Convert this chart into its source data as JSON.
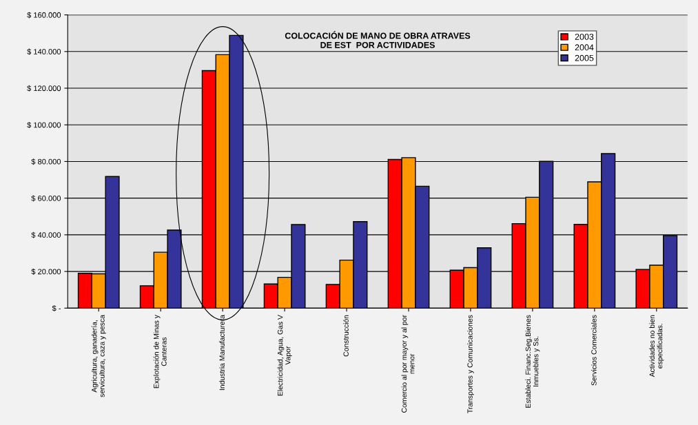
{
  "chart_data": {
    "type": "bar",
    "title": "COLOCACIÓN DE MANO DE OBRA ATRAVES\nDE EST  POR ACTIVIDADES",
    "categories": [
      "Agricultura, ganadería,\nservicultura, caza y pesca",
      "Explotación de Minas y\nCanteras",
      "Industria Manufacturera",
      "Electricidad, Agua, Gas V\nVapor",
      "Construcción",
      "Comercio al por mayor y al por\nmenor",
      "Transportes y Comunicaciones",
      "Estableci. Financ.Seg.Bienes\nInmuebles y Ss.",
      "Servicios Comerciales",
      "Actividades no bien\nespecificadas."
    ],
    "series": [
      {
        "name": "2003",
        "color": "#ff0000",
        "values": [
          19000,
          12200,
          129600,
          13200,
          12900,
          81100,
          20700,
          46100,
          45700,
          21100
        ]
      },
      {
        "name": "2004",
        "color": "#ff9900",
        "values": [
          18700,
          30500,
          138300,
          16800,
          26200,
          82100,
          22100,
          60500,
          68900,
          23400
        ]
      },
      {
        "name": "2005",
        "color": "#333399",
        "values": [
          71800,
          42600,
          148800,
          45600,
          47200,
          66500,
          32900,
          80100,
          84300,
          39600
        ]
      }
    ],
    "ylim": [
      0,
      160000
    ],
    "yticks": [
      {
        "value": 0,
        "label": "$ -"
      },
      {
        "value": 20000,
        "label": "$ 20.000"
      },
      {
        "value": 40000,
        "label": "$ 40.000"
      },
      {
        "value": 60000,
        "label": "$ 60.000"
      },
      {
        "value": 80000,
        "label": "$ 80.000"
      },
      {
        "value": 100000,
        "label": "$ 100.000"
      },
      {
        "value": 120000,
        "label": "$ 120.000"
      },
      {
        "value": 140000,
        "label": "$ 140.000"
      },
      {
        "value": 160000,
        "label": "$ 160.000"
      }
    ],
    "grid": "y",
    "legend": "top right"
  }
}
